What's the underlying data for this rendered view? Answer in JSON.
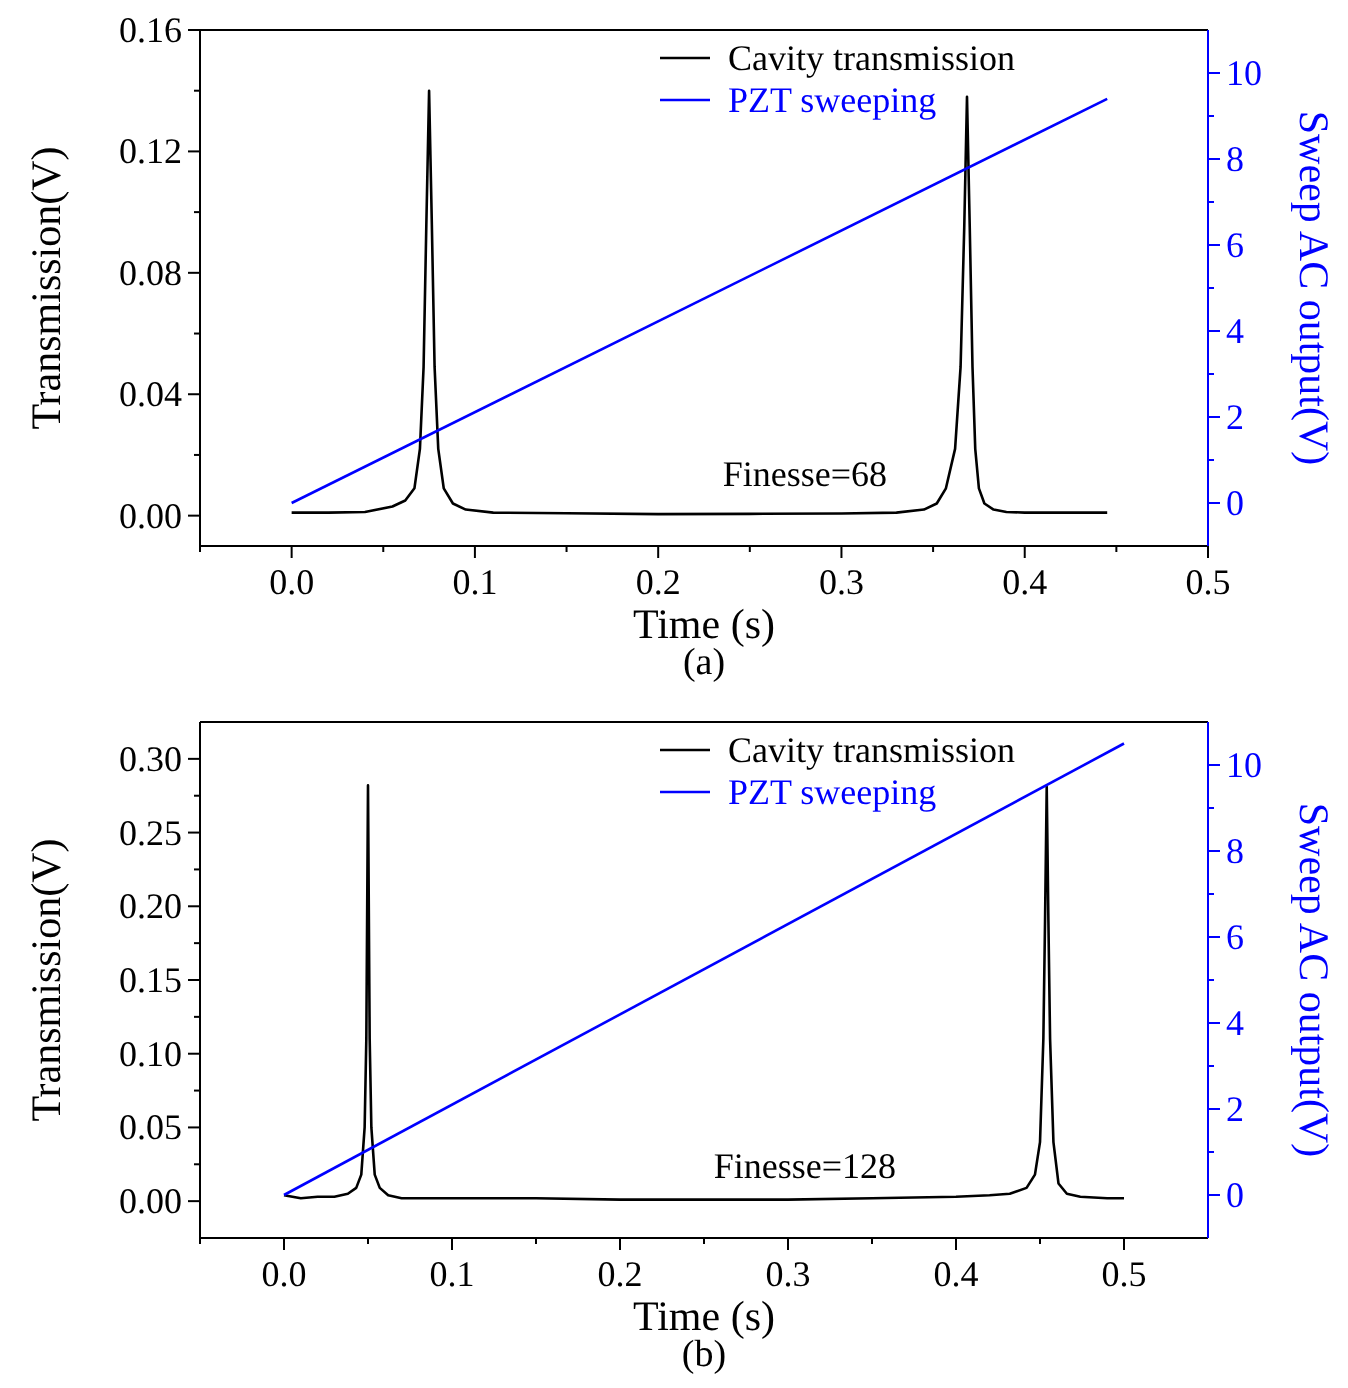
{
  "chart_data": [
    {
      "type": "line",
      "title": "(a)",
      "xlabel": "Time (s)",
      "ylabel": "Transmission(V)",
      "y2label": "Sweep AC output(V)",
      "annotations": [
        "Finesse=68"
      ],
      "legend": "top right",
      "grid": false,
      "line_style": "solid",
      "xlim": [
        -0.05,
        0.5
      ],
      "xticks": [
        {
          "value": 0,
          "label": "0.0"
        },
        0.1,
        0.2,
        0.3,
        0.4,
        0.5
      ],
      "ylim": [
        -0.01,
        0.16
      ],
      "yticks": [
        {
          "value": 0,
          "label": "0.00"
        },
        0.04,
        0.08,
        0.12,
        0.16
      ],
      "y2lim": [
        -1,
        11
      ],
      "y2ticks": [
        0,
        2,
        4,
        6,
        8,
        10
      ],
      "series": [
        {
          "name": "Cavity transmission",
          "color": "#000000",
          "x": [
            0,
            0.02,
            0.04,
            0.055,
            0.062,
            0.067,
            0.07,
            0.072,
            0.0735,
            0.075,
            0.0765,
            0.078,
            0.08,
            0.083,
            0.088,
            0.095,
            0.11,
            0.15,
            0.2,
            0.25,
            0.3,
            0.33,
            0.345,
            0.352,
            0.357,
            0.362,
            0.365,
            0.367,
            0.3685,
            0.37,
            0.3715,
            0.373,
            0.375,
            0.378,
            0.383,
            0.39,
            0.4,
            0.42,
            0.445
          ],
          "values": [
            0.001,
            0.001,
            0.0012,
            0.003,
            0.005,
            0.009,
            0.022,
            0.049,
            0.096,
            0.14,
            0.096,
            0.049,
            0.022,
            0.009,
            0.004,
            0.002,
            0.001,
            0.0008,
            0.0005,
            0.0006,
            0.0007,
            0.001,
            0.002,
            0.004,
            0.009,
            0.022,
            0.049,
            0.095,
            0.138,
            0.095,
            0.049,
            0.022,
            0.009,
            0.004,
            0.002,
            0.0012,
            0.001,
            0.001,
            0.001
          ]
        },
        {
          "name": "PZT sweeping",
          "color": "#0000ff",
          "axis": "y2",
          "x": [
            0,
            0.445
          ],
          "values": [
            0,
            9.4
          ]
        }
      ]
    },
    {
      "type": "line",
      "title": "(b)",
      "xlabel": "Time (s)",
      "ylabel": "Transmission(V)",
      "y2label": "Sweep AC output(V)",
      "annotations": [
        "Finesse=128"
      ],
      "legend": "top right",
      "grid": false,
      "line_style": "solid",
      "xlim": [
        -0.05,
        0.55
      ],
      "xticks": [
        {
          "value": 0,
          "label": "0.0"
        },
        0.1,
        0.2,
        0.3,
        0.4,
        0.5
      ],
      "ylim": [
        -0.025,
        0.325
      ],
      "yticks": [
        {
          "value": 0,
          "label": "0.00"
        },
        0.05,
        {
          "value": 0.1,
          "label": "0.10"
        },
        0.15,
        {
          "value": 0.2,
          "label": "0.20"
        },
        0.25,
        {
          "value": 0.3,
          "label": "0.30"
        }
      ],
      "y2lim": [
        -1,
        11
      ],
      "y2ticks": [
        0,
        2,
        4,
        6,
        8,
        10
      ],
      "series": [
        {
          "name": "Cavity transmission",
          "color": "#000000",
          "x": [
            0,
            0.01,
            0.02,
            0.03,
            0.038,
            0.043,
            0.046,
            0.048,
            0.049,
            0.05,
            0.051,
            0.052,
            0.054,
            0.057,
            0.062,
            0.07,
            0.1,
            0.15,
            0.2,
            0.25,
            0.3,
            0.35,
            0.4,
            0.42,
            0.432,
            0.442,
            0.447,
            0.45,
            0.452,
            0.453,
            0.454,
            0.455,
            0.456,
            0.458,
            0.461,
            0.466,
            0.474,
            0.49,
            0.5
          ],
          "values": [
            0.004,
            0.002,
            0.003,
            0.003,
            0.005,
            0.009,
            0.018,
            0.05,
            0.11,
            0.282,
            0.11,
            0.05,
            0.018,
            0.009,
            0.004,
            0.002,
            0.002,
            0.002,
            0.001,
            0.001,
            0.001,
            0.002,
            0.003,
            0.004,
            0.005,
            0.009,
            0.018,
            0.04,
            0.11,
            0.19,
            0.281,
            0.19,
            0.11,
            0.04,
            0.012,
            0.005,
            0.003,
            0.002,
            0.002
          ]
        },
        {
          "name": "PZT sweeping",
          "color": "#0000ff",
          "axis": "y2",
          "x": [
            0,
            0.5
          ],
          "values": [
            0,
            10.5
          ]
        }
      ]
    }
  ]
}
